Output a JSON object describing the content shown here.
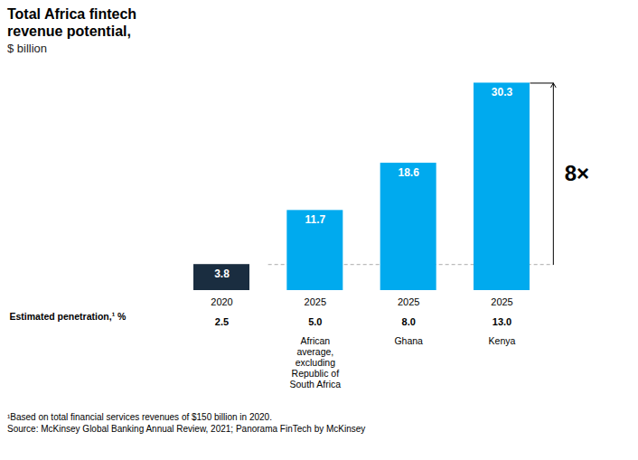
{
  "chart_data": {
    "type": "bar",
    "title": "Total Africa fintech\nrevenue potential,",
    "subtitle": "$ billion",
    "categories": [
      "2020",
      "2025",
      "2025",
      "2025"
    ],
    "values": [
      3.8,
      11.7,
      18.6,
      30.3
    ],
    "colors": [
      "#1a2d40",
      "#00aaee",
      "#00aaee",
      "#00aaee"
    ],
    "ylim": [
      0,
      33
    ],
    "tick_labels": "x",
    "grid": false,
    "data_labels": true,
    "penetration": {
      "label": "Estimated penetration,¹ %",
      "values": [
        2.5,
        5.0,
        8.0,
        13.0
      ],
      "value_labels": [
        "2.5",
        "5.0",
        "8.0",
        "13.0"
      ]
    },
    "sublabels": [
      null,
      "African\naverage,\nexcluding\nRepublic of\nSouth Africa",
      "Ghana",
      "Kenya"
    ],
    "reference_line": 3.8,
    "annotation": {
      "text": "8×",
      "y_from": 3.8,
      "y_to": 30.3
    },
    "footnotes": [
      "¹Based on total financial services revenues of $150 billion in 2020.",
      "Source: McKinsey Global Banking Annual Review, 2021; Panorama FinTech by McKinsey"
    ]
  }
}
